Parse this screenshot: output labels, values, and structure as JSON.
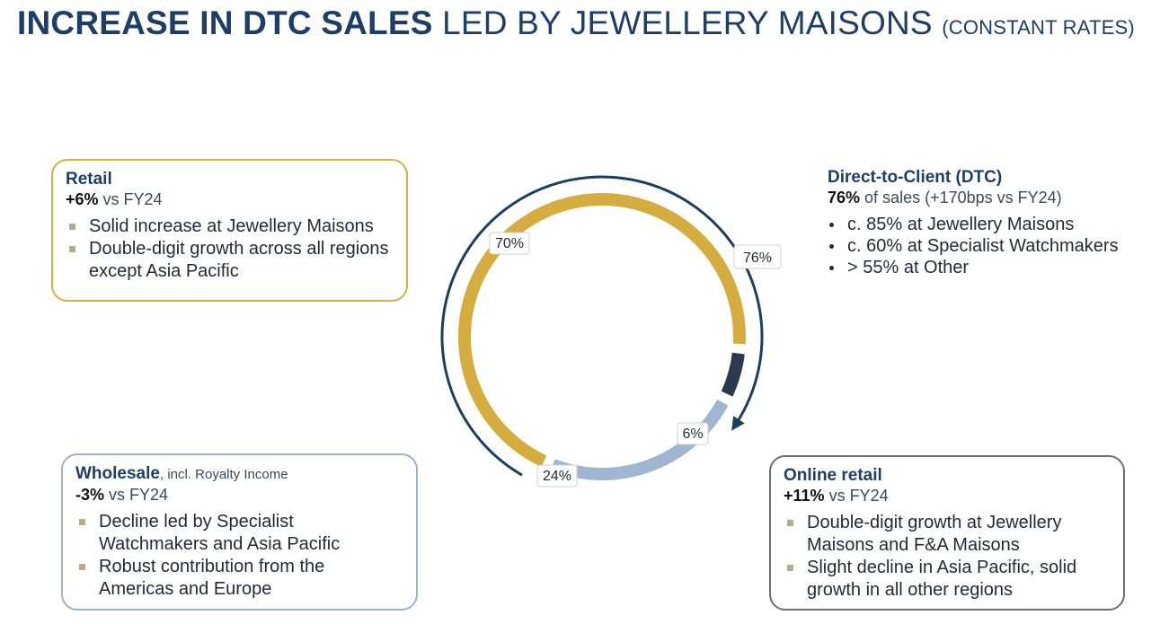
{
  "header": {
    "title_bold": "INCREASE IN DTC SALES",
    "title_light": "LED BY JEWELLERY MAISONS",
    "title_note": "(CONSTANT RATES)"
  },
  "retail": {
    "heading": "Retail",
    "metric_value": "+6%",
    "metric_text": "vs FY24",
    "bullets": [
      "Solid increase at Jewellery Maisons",
      "Double-digit growth across all regions except Asia Pacific"
    ]
  },
  "wholesale": {
    "heading": "Wholesale",
    "heading_sub": ", incl. Royalty Income",
    "metric_value": "-3%",
    "metric_text": "vs FY24",
    "bullets": [
      "Decline led by Specialist Watchmakers and Asia Pacific",
      "Robust contribution from the Americas and Europe"
    ]
  },
  "dtc": {
    "heading": "Direct-to-Client (DTC)",
    "metric_value": "76%",
    "metric_text": "of sales (+170bps vs FY24)",
    "bullets": [
      "c. 85% at Jewellery Maisons",
      "c. 60% at Specialist Watchmakers",
      "> 55% at Other"
    ]
  },
  "online": {
    "heading": "Online retail",
    "metric_value": "+11%",
    "metric_text": "vs FY24",
    "bullets": [
      "Double-digit growth at Jewellery Maisons and F&A Maisons",
      "Slight decline in Asia Pacific, solid growth in all other regions"
    ]
  },
  "chart_data": {
    "type": "pie",
    "categories": [
      "Retail",
      "Online retail",
      "Wholesale"
    ],
    "values": [
      70,
      6,
      24
    ],
    "labels": [
      "70%",
      "6%",
      "24%"
    ],
    "colors": [
      "#d4ac3f",
      "#2c3a4e",
      "#9fb6d2"
    ],
    "dtc_arc": {
      "value": 76,
      "label": "76%",
      "color": "#1d3f5c"
    }
  }
}
